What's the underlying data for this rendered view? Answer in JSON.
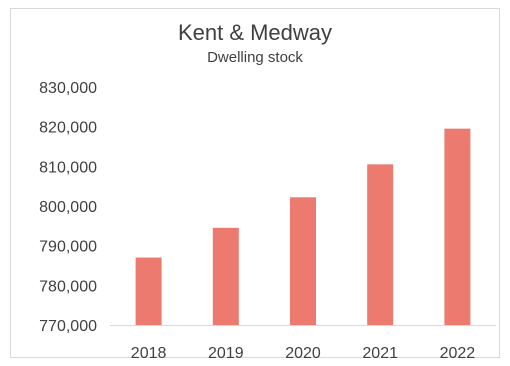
{
  "chart_data": {
    "type": "bar",
    "title": "Kent & Medway",
    "subtitle": "Dwelling stock",
    "xlabel": "",
    "ylabel": "",
    "categories": [
      "2018",
      "2019",
      "2020",
      "2021",
      "2022"
    ],
    "values": [
      787000,
      794500,
      802200,
      810500,
      819500
    ],
    "ylim": [
      770000,
      830000
    ],
    "yticks": [
      770000,
      780000,
      790000,
      800000,
      810000,
      820000,
      830000
    ],
    "ytick_labels": [
      "770,000",
      "780,000",
      "790,000",
      "800,000",
      "810,000",
      "820,000",
      "830,000"
    ],
    "grid": false,
    "legend": "none",
    "bar_color": "#ec7a6e"
  }
}
